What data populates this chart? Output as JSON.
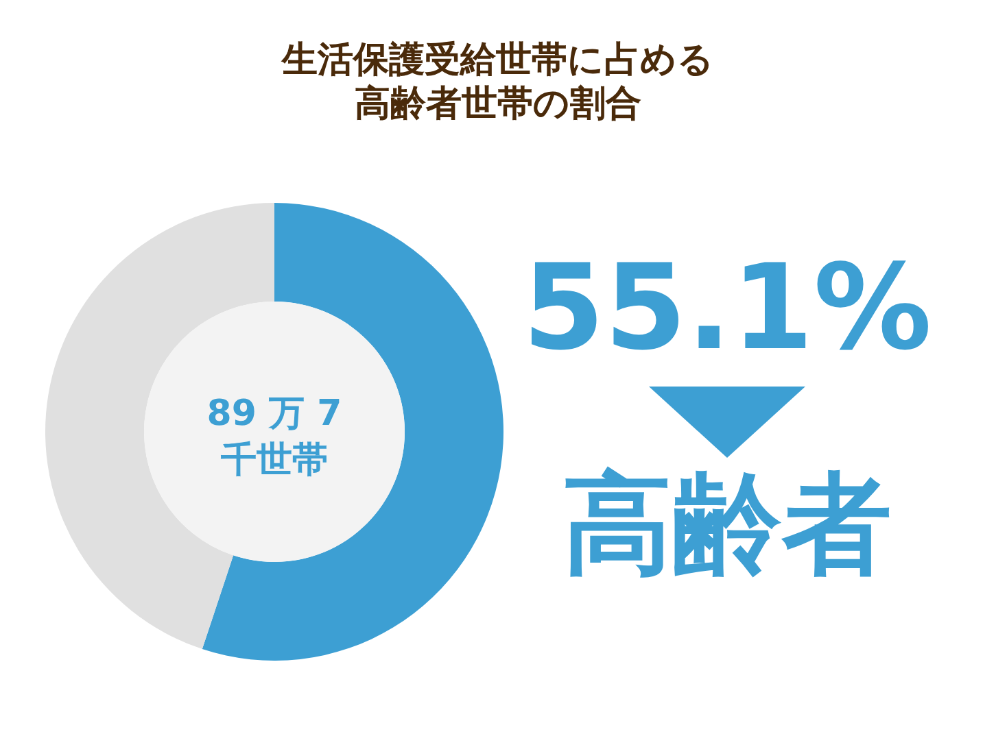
{
  "chart_data": {
    "type": "donut",
    "title": "生活保護受給世帯に占める高齢者世帯の割合",
    "categories": [
      "高齢者",
      null
    ],
    "values": [
      55.1,
      44.9
    ],
    "colors": [
      "#3d9fd3",
      "#e0e0e0"
    ],
    "value_labels": [
      "55.1%",
      null
    ],
    "annotations": [
      "89 万 7 千世帯"
    ]
  }
}
